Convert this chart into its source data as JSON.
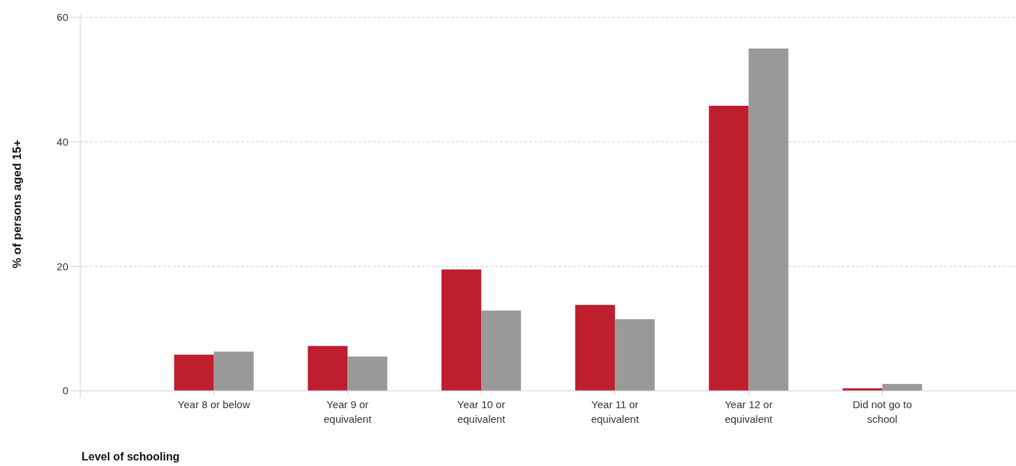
{
  "chart_data": {
    "type": "bar",
    "xlabel": "Level of schooling",
    "ylabel": "% of persons aged 15+",
    "categories": [
      "Year 8 or below",
      "Year 9 or equivalent",
      "Year 10 or equivalent",
      "Year 11 or equivalent",
      "Year 12 or equivalent",
      "Did not go to school"
    ],
    "series": [
      {
        "color": "#be1e2d",
        "values": [
          5.8,
          7.2,
          19.5,
          13.8,
          45.8,
          0.4
        ]
      },
      {
        "color": "#999999",
        "values": [
          6.3,
          5.5,
          12.9,
          11.5,
          55.0,
          1.1
        ]
      }
    ],
    "ylim": [
      0,
      60
    ],
    "yticks": [
      0,
      20,
      40,
      60
    ],
    "grid": "y"
  }
}
